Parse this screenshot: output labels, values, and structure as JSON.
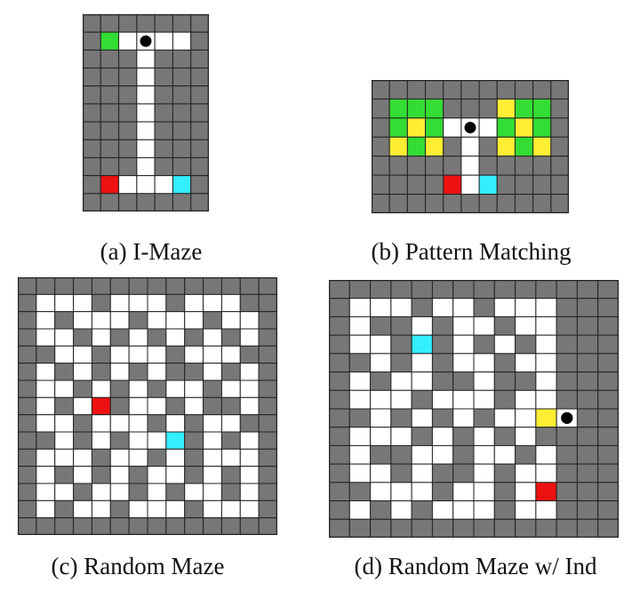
{
  "colors": {
    "wall": "#777777",
    "floor": "#ffffff",
    "grid": "#222222",
    "green": "#33dd33",
    "yellow": "#ffee33",
    "red": "#ee1111",
    "cyan": "#33eeff",
    "agent": "#000000"
  },
  "legend": {
    "W": "wall",
    "o": "floor",
    "G": "green goal cell",
    "Y": "yellow indicator cell",
    "R": "red goal cell",
    "C": "cyan goal cell",
    "A": "agent (black dot) on floor"
  },
  "panels": [
    {
      "id": "a",
      "caption": "(a) I-Maze",
      "rows": [
        "WWWWWWW",
        "WGoAooW",
        "WWWoWWW",
        "WWWoWWW",
        "WWWoWWW",
        "WWWoWWW",
        "WWWoWWW",
        "WWWoWWW",
        "WWWoWWW",
        "WRoooCW",
        "WWWWWWW"
      ]
    },
    {
      "id": "b",
      "caption": "(b) Pattern Matching",
      "rows": [
        "WWWWWWWWWWW",
        "WGGGWWWYGGW",
        "WGYGoAoGYGW",
        "WYGYWoWYGYW",
        "WWWWWoWWWWW",
        "WWWWRoCWWWW",
        "WWWWWWWWWWW"
      ]
    },
    {
      "id": "c",
      "caption": "(c) Random Maze",
      "rows": [
        "WWWWWWWWWWWWWW",
        "WoooWoooWoooWW",
        "WoWoooWoooWooW",
        "WooWoWoWoWoWoW",
        "WWooWoooWoooWW",
        "WoWoWoWoWWoWoW",
        "WooWoWoWooWooW",
        "WoWoRWooWoWWoW",
        "WooWoooWoWooWW",
        "WWoWoWooCWoWoW",
        "WoooWooWoWoooW",
        "WoWoWoWooWoWoW",
        "WooWooWoWooWoW",
        "WoWooWoooWoooW",
        "WWWWWWWWWWWWWW"
      ]
    },
    {
      "id": "d",
      "caption": "(d) Random Maze w/ Ind",
      "rows": [
        "WWWWWWWWWWWWWW",
        "WoooWooWoooWWW",
        "WoWWoWooWooWWW",
        "WooWCWoWoWoWWW",
        "WWoWoWooWooWWW",
        "WoWooWWoWWoWWW",
        "WoooWoooWooWWW",
        "WWoWoWoWooYAWW",
        "WoooWoWoWoWWWW",
        "WoWWooWooWoWWW",
        "WooWoWWoWooWWW",
        "WWoooWooWoRWWW",
        "WoWoWoooWooWWW",
        "WWWWWWWWWWWWWW"
      ]
    }
  ]
}
